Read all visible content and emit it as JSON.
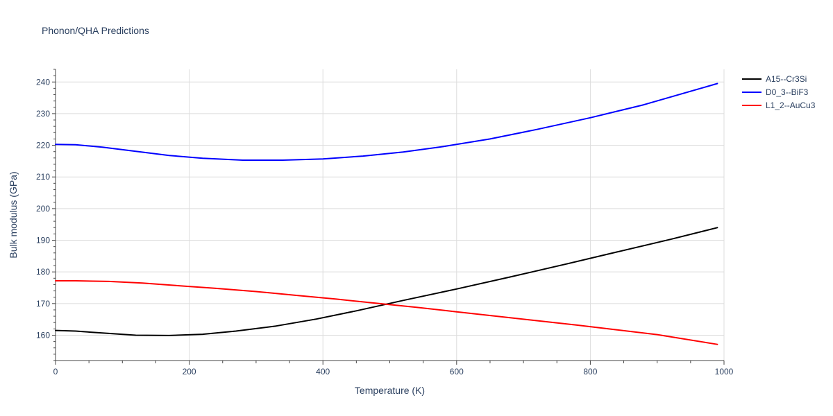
{
  "chart_data": {
    "type": "line",
    "title": "Phonon/QHA Predictions",
    "xlabel": "Temperature (K)",
    "ylabel": "Bulk modulus (GPa)",
    "xlim": [
      0,
      1000
    ],
    "ylim": [
      152,
      244
    ],
    "xticks": [
      0,
      200,
      400,
      600,
      800,
      1000
    ],
    "yticks": [
      160,
      170,
      180,
      190,
      200,
      210,
      220,
      230,
      240
    ],
    "grid": true,
    "legend_position": "top-right",
    "series": [
      {
        "name": "A15--Cr3Si",
        "color": "#000000",
        "x": [
          0,
          30,
          70,
          120,
          170,
          220,
          270,
          330,
          390,
          450,
          520,
          600,
          680,
          760,
          840,
          920,
          990
        ],
        "y": [
          161.5,
          161.3,
          160.7,
          160.0,
          159.9,
          160.3,
          161.3,
          162.9,
          165.1,
          167.7,
          171.0,
          174.6,
          178.4,
          182.3,
          186.3,
          190.3,
          194.0
        ]
      },
      {
        "name": "D0_3--BiF3",
        "color": "#0000ff",
        "x": [
          0,
          30,
          70,
          120,
          170,
          220,
          280,
          340,
          400,
          460,
          520,
          580,
          650,
          720,
          800,
          880,
          990
        ],
        "y": [
          220.3,
          220.2,
          219.4,
          218.1,
          216.8,
          215.9,
          215.3,
          215.3,
          215.7,
          216.6,
          217.9,
          219.6,
          222.0,
          225.0,
          228.7,
          232.8,
          239.5
        ]
      },
      {
        "name": "L1_2--AuCu3",
        "color": "#ff0000",
        "x": [
          0,
          30,
          80,
          130,
          180,
          240,
          300,
          360,
          420,
          480,
          540,
          600,
          660,
          720,
          780,
          840,
          900,
          990
        ],
        "y": [
          177.2,
          177.2,
          177.0,
          176.5,
          175.7,
          174.8,
          173.8,
          172.6,
          171.4,
          170.1,
          168.8,
          167.4,
          166.0,
          164.6,
          163.2,
          161.7,
          160.2,
          157.1
        ]
      }
    ]
  }
}
